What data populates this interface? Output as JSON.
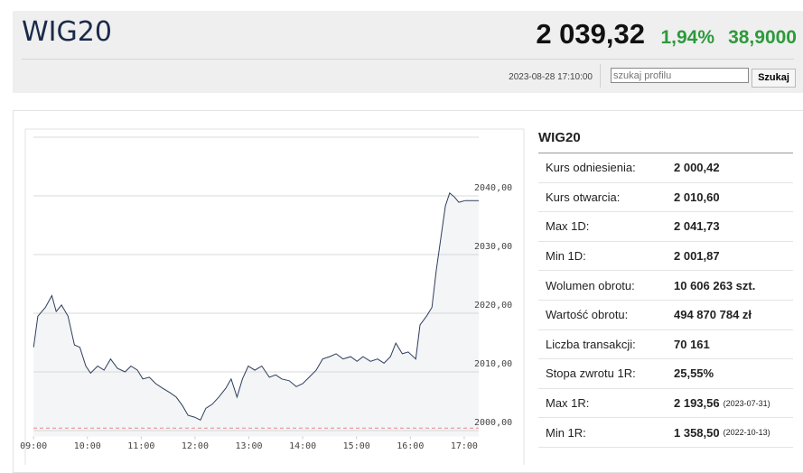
{
  "header": {
    "title": "WIG20",
    "price": "2 039,32",
    "change_pct": "1,94%",
    "change": "38,9000",
    "timestamp": "2023-08-28 17:10:00",
    "search_placeholder": "szukaj profilu",
    "search_button": "Szukaj"
  },
  "chart_data": {
    "type": "line",
    "color": "#2c3e5c",
    "fill": "#f4f5f7",
    "reference_line": 2000.42,
    "reference_color": "#e88a8a",
    "x": [
      9.0,
      9.08,
      9.22,
      9.34,
      9.42,
      9.52,
      9.64,
      9.76,
      9.86,
      9.97,
      10.06,
      10.19,
      10.31,
      10.43,
      10.56,
      10.7,
      10.81,
      10.93,
      11.03,
      11.15,
      11.27,
      11.4,
      11.53,
      11.65,
      11.77,
      11.87,
      11.99,
      12.1,
      12.2,
      12.32,
      12.44,
      12.57,
      12.67,
      12.78,
      12.88,
      12.99,
      13.11,
      13.24,
      13.38,
      13.5,
      13.61,
      13.75,
      13.88,
      14.0,
      14.12,
      14.25,
      14.37,
      14.5,
      14.62,
      14.75,
      14.89,
      15.01,
      15.12,
      15.26,
      15.39,
      15.51,
      15.63,
      15.73,
      15.85,
      15.96,
      16.1,
      16.18,
      16.3,
      16.4,
      16.48,
      16.57,
      16.65,
      16.73,
      16.82,
      16.9,
      17.02,
      17.14,
      17.27
    ],
    "values": [
      2014.2,
      2019.5,
      2021.0,
      2023.0,
      2020.3,
      2021.4,
      2019.5,
      2014.6,
      2014.2,
      2011.0,
      2009.8,
      2011.0,
      2010.3,
      2012.2,
      2010.6,
      2010.0,
      2011.0,
      2010.3,
      2008.8,
      2009.1,
      2008.0,
      2007.2,
      2006.5,
      2005.7,
      2004.2,
      2002.6,
      2002.3,
      2001.8,
      2003.8,
      2004.5,
      2005.7,
      2007.2,
      2008.8,
      2005.7,
      2008.8,
      2011.0,
      2010.3,
      2011.0,
      2009.1,
      2009.5,
      2008.8,
      2008.5,
      2007.5,
      2008.0,
      2009.1,
      2010.3,
      2012.2,
      2012.6,
      2013.1,
      2012.2,
      2012.6,
      2011.8,
      2012.6,
      2011.8,
      2012.2,
      2011.5,
      2012.6,
      2014.9,
      2013.1,
      2013.4,
      2012.2,
      2018.0,
      2019.5,
      2021.0,
      2027.2,
      2033.1,
      2038.3,
      2040.5,
      2039.8,
      2038.9,
      2039.2,
      2039.2,
      2039.2
    ],
    "xlim": [
      8.88,
      17.27
    ],
    "ylim": [
      1999,
      2050
    ],
    "xticks": [
      {
        "value": 9,
        "label": "09:00"
      },
      {
        "value": 10,
        "label": "10:00"
      },
      {
        "value": 11,
        "label": "11:00"
      },
      {
        "value": 12,
        "label": "12:00"
      },
      {
        "value": 13,
        "label": "13:00"
      },
      {
        "value": 14,
        "label": "14:00"
      },
      {
        "value": 15,
        "label": "15:00"
      },
      {
        "value": 16,
        "label": "16:00"
      },
      {
        "value": 17,
        "label": "17:00"
      }
    ],
    "yticks": [
      {
        "value": 2000,
        "label": "2000,00"
      },
      {
        "value": 2010,
        "label": "2010,00"
      },
      {
        "value": 2020,
        "label": "2020,00"
      },
      {
        "value": 2030,
        "label": "2030,00"
      },
      {
        "value": 2040,
        "label": "2040,00"
      }
    ],
    "grid": true
  },
  "table": {
    "title": "WIG20",
    "rows": [
      {
        "label": "Kurs odniesienia:",
        "value": "2 000,42"
      },
      {
        "label": "Kurs otwarcia:",
        "value": "2 010,60"
      },
      {
        "label": "Max 1D:",
        "value": "2 041,73"
      },
      {
        "label": "Min 1D:",
        "value": "2 001,87"
      },
      {
        "label": "Wolumen obrotu:",
        "value": "10 606 263 szt."
      },
      {
        "label": "Wartość obrotu:",
        "value": "494 870 784 zł"
      },
      {
        "label": "Liczba transakcji:",
        "value": "70 161"
      },
      {
        "label": "Stopa zwrotu 1R:",
        "value": "25,55%"
      },
      {
        "label": "Max 1R:",
        "value": "2 193,56",
        "date": "(2023-07-31)"
      },
      {
        "label": "Min 1R:",
        "value": "1 358,50",
        "date": "(2022-10-13)"
      }
    ]
  }
}
